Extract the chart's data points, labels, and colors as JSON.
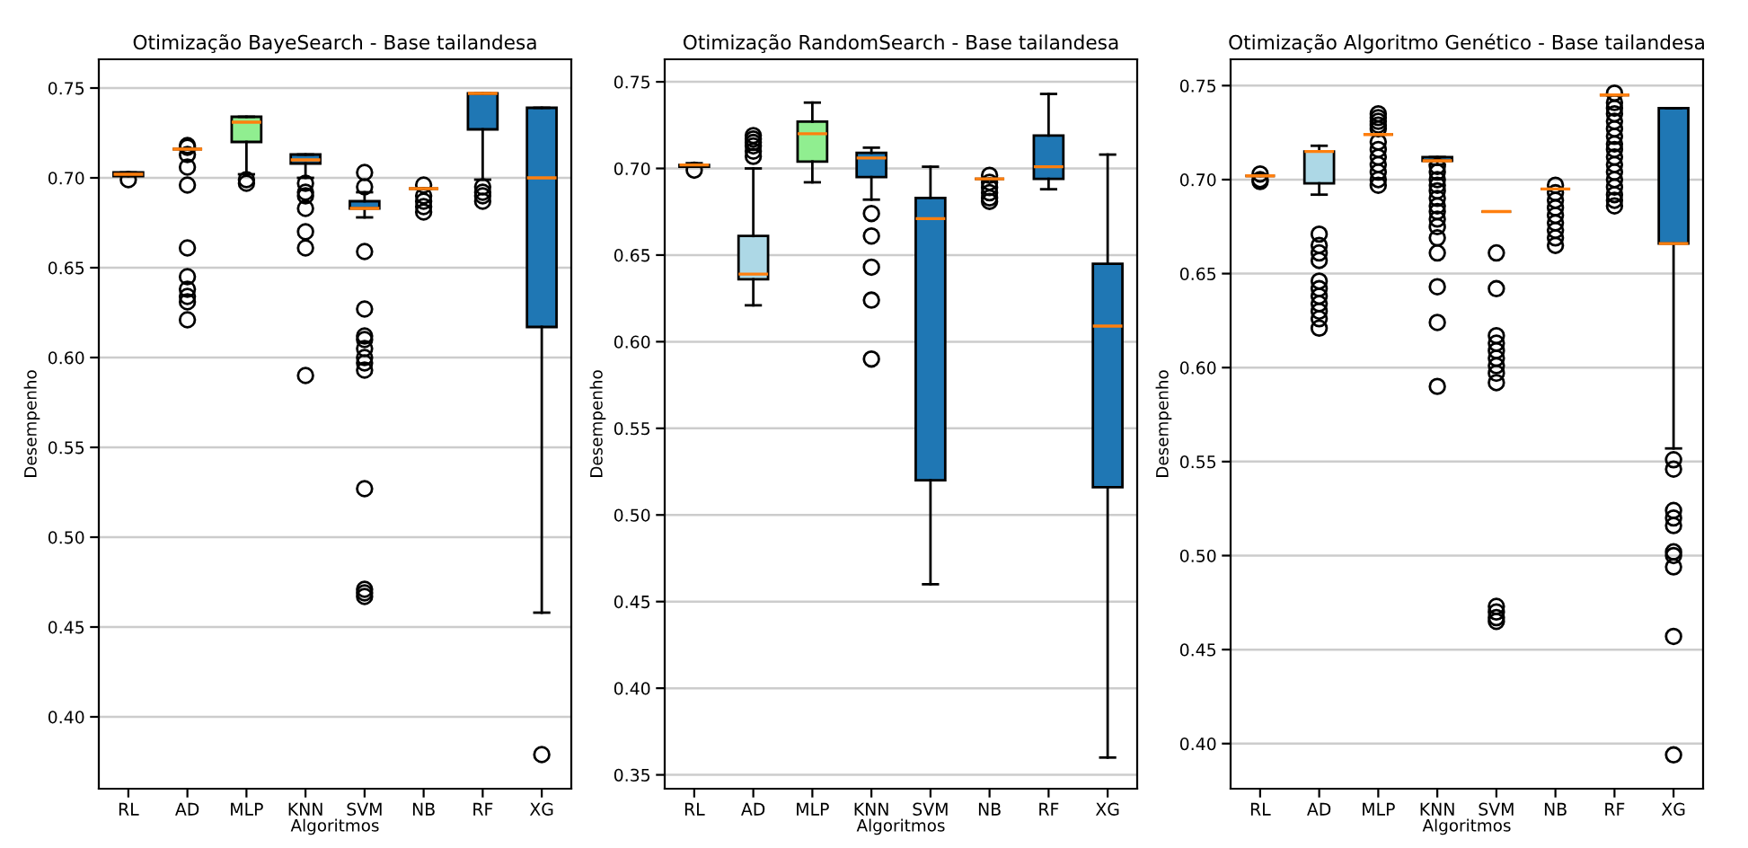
{
  "chart_data": [
    {
      "type": "box",
      "title": "Otimização BayeSearch - Base tailandesa",
      "xlabel": "Algoritmos",
      "ylabel": "Desempenho",
      "categories": [
        "RL",
        "AD",
        "MLP",
        "KNN",
        "SVM",
        "NB",
        "RF",
        "XG"
      ],
      "ylim": [
        0.36,
        0.766
      ],
      "yticks": [
        {
          "value": 0.4,
          "label": "0.40"
        },
        0.45,
        {
          "value": 0.5,
          "label": "0.50"
        },
        0.55,
        {
          "value": 0.6,
          "label": "0.60"
        },
        0.65,
        {
          "value": 0.7,
          "label": "0.70"
        },
        0.75
      ],
      "grid": "y",
      "colors": [
        "#1f77b4",
        "#000000",
        "#90ee90",
        "#1f77b4",
        "#1f77b4",
        "#000000",
        "#1f77b4",
        "#1f77b4"
      ],
      "boxes": [
        {
          "low": 0.701,
          "q1": 0.701,
          "median": 0.702,
          "q3": 0.703,
          "high": 0.703,
          "outliers": [
            0.699
          ]
        },
        {
          "low": 0.716,
          "q1": 0.716,
          "median": 0.716,
          "q3": 0.716,
          "high": 0.716,
          "outliers": [
            0.718,
            0.717,
            0.713,
            0.706,
            0.696,
            0.661,
            0.645,
            0.638,
            0.634,
            0.631,
            0.621
          ]
        },
        {
          "low": 0.702,
          "q1": 0.72,
          "median": 0.731,
          "q3": 0.734,
          "high": 0.734,
          "outliers": [
            0.699,
            0.697
          ]
        },
        {
          "low": 0.7,
          "q1": 0.708,
          "median": 0.71,
          "q3": 0.713,
          "high": 0.713,
          "outliers": [
            0.697,
            0.692,
            0.69,
            0.683,
            0.67,
            0.661,
            0.59
          ]
        },
        {
          "low": 0.678,
          "q1": 0.683,
          "median": 0.683,
          "q3": 0.687,
          "high": 0.692,
          "outliers": [
            0.703,
            0.695,
            0.659,
            0.627,
            0.612,
            0.61,
            0.605,
            0.6,
            0.597,
            0.593,
            0.527,
            0.471,
            0.469,
            0.467
          ]
        },
        {
          "low": 0.694,
          "q1": 0.694,
          "median": 0.694,
          "q3": 0.694,
          "high": 0.694,
          "outliers": [
            0.696,
            0.69,
            0.687,
            0.684,
            0.681
          ]
        },
        {
          "low": 0.699,
          "q1": 0.727,
          "median": 0.747,
          "q3": 0.747,
          "high": 0.747,
          "outliers": [
            0.695,
            0.692,
            0.69,
            0.687
          ]
        },
        {
          "low": 0.458,
          "q1": 0.617,
          "median": 0.7,
          "q3": 0.739,
          "high": 0.739,
          "outliers": [
            0.379
          ]
        }
      ]
    },
    {
      "type": "box",
      "title": "Otimização RandomSearch - Base tailandesa",
      "xlabel": "Algoritmos",
      "ylabel": "Desempenho",
      "categories": [
        "RL",
        "AD",
        "MLP",
        "KNN",
        "SVM",
        "NB",
        "RF",
        "XG"
      ],
      "ylim": [
        0.342,
        0.763
      ],
      "yticks": [
        0.35,
        {
          "value": 0.4,
          "label": "0.40"
        },
        0.45,
        {
          "value": 0.5,
          "label": "0.50"
        },
        0.55,
        {
          "value": 0.6,
          "label": "0.60"
        },
        0.65,
        {
          "value": 0.7,
          "label": "0.70"
        },
        0.75
      ],
      "grid": "y",
      "colors": [
        "#1f77b4",
        "#add8e6",
        "#90ee90",
        "#1f77b4",
        "#1f77b4",
        "#000000",
        "#1f77b4",
        "#1f77b4"
      ],
      "boxes": [
        {
          "low": 0.701,
          "q1": 0.701,
          "median": 0.702,
          "q3": 0.702,
          "high": 0.703,
          "outliers": [
            0.699
          ]
        },
        {
          "low": 0.621,
          "q1": 0.636,
          "median": 0.639,
          "q3": 0.661,
          "high": 0.7,
          "outliers": [
            0.719,
            0.717,
            0.715,
            0.713,
            0.71,
            0.707
          ]
        },
        {
          "low": 0.692,
          "q1": 0.704,
          "median": 0.72,
          "q3": 0.727,
          "high": 0.738
        },
        {
          "low": 0.682,
          "q1": 0.695,
          "median": 0.706,
          "q3": 0.709,
          "high": 0.712,
          "outliers": [
            0.674,
            0.661,
            0.643,
            0.624,
            0.59
          ]
        },
        {
          "low": 0.46,
          "q1": 0.52,
          "median": 0.671,
          "q3": 0.683,
          "high": 0.701
        },
        {
          "low": 0.694,
          "q1": 0.694,
          "median": 0.694,
          "q3": 0.694,
          "high": 0.694,
          "outliers": [
            0.696,
            0.692,
            0.689,
            0.686,
            0.683,
            0.681
          ]
        },
        {
          "low": 0.688,
          "q1": 0.694,
          "median": 0.701,
          "q3": 0.719,
          "high": 0.743
        },
        {
          "low": 0.36,
          "q1": 0.516,
          "median": 0.609,
          "q3": 0.645,
          "high": 0.708
        }
      ]
    },
    {
      "type": "box",
      "title": "Otimização Algoritmo Genético - Base tailandesa",
      "xlabel": "Algoritmos",
      "ylabel": "Desempenho",
      "categories": [
        "RL",
        "AD",
        "MLP",
        "KNN",
        "SVM",
        "NB",
        "RF",
        "XG"
      ],
      "ylim": [
        0.376,
        0.764
      ],
      "yticks": [
        {
          "value": 0.4,
          "label": "0.40"
        },
        0.45,
        {
          "value": 0.5,
          "label": "0.50"
        },
        0.55,
        {
          "value": 0.6,
          "label": "0.60"
        },
        0.65,
        {
          "value": 0.7,
          "label": "0.70"
        },
        0.75
      ],
      "grid": "y",
      "colors": [
        "#000000",
        "#add8e6",
        "#000000",
        "#1f77b4",
        "#000000",
        "#000000",
        "#000000",
        "#1f77b4"
      ],
      "boxes": [
        {
          "low": 0.702,
          "q1": 0.702,
          "median": 0.702,
          "q3": 0.702,
          "high": 0.702,
          "outliers": [
            0.703,
            0.7,
            0.699
          ]
        },
        {
          "low": 0.692,
          "q1": 0.698,
          "median": 0.715,
          "q3": 0.715,
          "high": 0.718,
          "outliers": [
            0.671,
            0.665,
            0.661,
            0.657,
            0.646,
            0.642,
            0.638,
            0.634,
            0.63,
            0.626,
            0.621
          ]
        },
        {
          "low": 0.724,
          "q1": 0.724,
          "median": 0.724,
          "q3": 0.724,
          "high": 0.724,
          "outliers": [
            0.735,
            0.733,
            0.731,
            0.729,
            0.727,
            0.72,
            0.716,
            0.712,
            0.708,
            0.704,
            0.7,
            0.697
          ]
        },
        {
          "low": 0.708,
          "q1": 0.71,
          "median": 0.71,
          "q3": 0.712,
          "high": 0.712,
          "outliers": [
            0.707,
            0.704,
            0.7,
            0.697,
            0.694,
            0.69,
            0.686,
            0.683,
            0.679,
            0.675,
            0.669,
            0.661,
            0.643,
            0.624,
            0.59
          ]
        },
        {
          "low": 0.683,
          "q1": 0.683,
          "median": 0.683,
          "q3": 0.683,
          "high": 0.683,
          "outliers": [
            0.661,
            0.642,
            0.617,
            0.613,
            0.609,
            0.605,
            0.601,
            0.597,
            0.592,
            0.473,
            0.47,
            0.467,
            0.465
          ]
        },
        {
          "low": 0.695,
          "q1": 0.695,
          "median": 0.695,
          "q3": 0.695,
          "high": 0.695,
          "outliers": [
            0.697,
            0.693,
            0.689,
            0.685,
            0.681,
            0.677,
            0.673,
            0.669,
            0.665
          ]
        },
        {
          "low": 0.745,
          "q1": 0.745,
          "median": 0.745,
          "q3": 0.745,
          "high": 0.745,
          "outliers": [
            0.746,
            0.741,
            0.738,
            0.735,
            0.731,
            0.727,
            0.723,
            0.719,
            0.716,
            0.712,
            0.708,
            0.704,
            0.7,
            0.696,
            0.692,
            0.689,
            0.686
          ]
        },
        {
          "low": 0.557,
          "q1": 0.666,
          "median": 0.666,
          "q3": 0.738,
          "high": 0.738,
          "outliers": [
            0.551,
            0.546,
            0.524,
            0.52,
            0.516,
            0.502,
            0.5,
            0.494,
            0.457,
            0.394
          ]
        }
      ]
    }
  ]
}
